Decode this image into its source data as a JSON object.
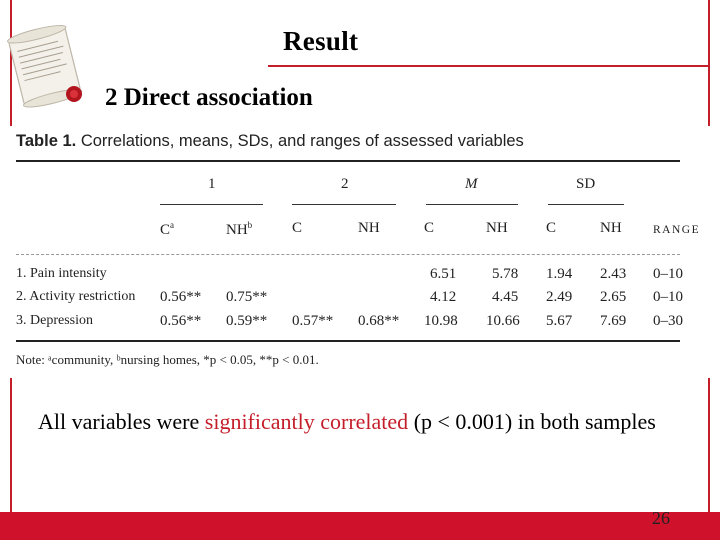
{
  "slide": {
    "title": "Result",
    "subtitle": "2 Direct association",
    "page_number": "26",
    "accent_color": "#c41e2a",
    "bar_color": "#d0112b",
    "logo_icon": "scroll-with-seal-icon"
  },
  "table": {
    "caption_number": "Table 1.",
    "caption_text": "Correlations, means, SDs, and ranges of assessed variables",
    "group_headers": [
      "1",
      "2",
      "M",
      "SD"
    ],
    "column_headers": [
      "C",
      "NH",
      "C",
      "NH",
      "C",
      "NH",
      "C",
      "NH",
      "RANGE"
    ],
    "superscripts": {
      "C": "a",
      "NH": "b"
    },
    "rows": [
      {
        "label": "1. Pain intensity",
        "r1_c": "",
        "r1_nh": "",
        "r2_c": "",
        "r2_nh": "",
        "m_c": "6.51",
        "m_nh": "5.78",
        "sd_c": "1.94",
        "sd_nh": "2.43",
        "range": "0–10"
      },
      {
        "label": "2. Activity restriction",
        "r1_c": "0.56**",
        "r1_nh": "0.75**",
        "r2_c": "",
        "r2_nh": "",
        "m_c": "4.12",
        "m_nh": "4.45",
        "sd_c": "2.49",
        "sd_nh": "2.65",
        "range": "0–10"
      },
      {
        "label": "3. Depression",
        "r1_c": "0.56**",
        "r1_nh": "0.59**",
        "r2_c": "0.57**",
        "r2_nh": "0.68**",
        "m_c": "10.98",
        "m_nh": "10.66",
        "sd_c": "5.67",
        "sd_nh": "7.69",
        "range": "0–30"
      }
    ],
    "note": "Note: ᵃcommunity, ᵇnursing homes, *p < 0.05, **p < 0.01."
  },
  "body": {
    "text_before": "All variables were ",
    "highlight": "significantly correlated",
    "text_after": " (p < 0.001) in both samples"
  }
}
